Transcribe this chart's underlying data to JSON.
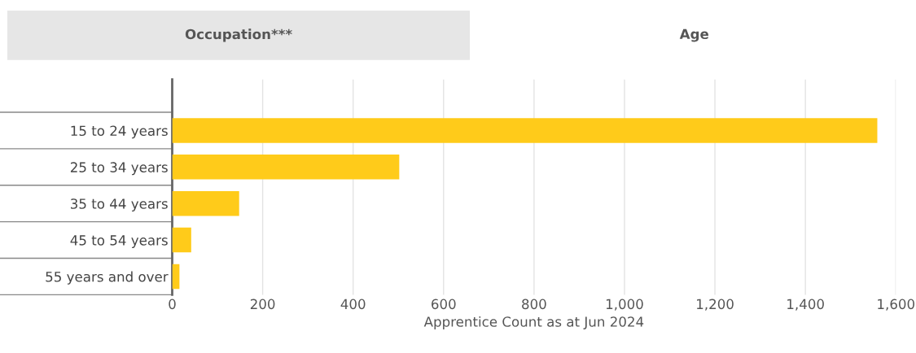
{
  "chart_data": {
    "type": "bar",
    "orientation": "horizontal",
    "categories": [
      "15 to 24 years",
      "25 to 34 years",
      "35 to 44 years",
      "45 to 54 years",
      "55 years and over"
    ],
    "values": [
      1559,
      502,
      148,
      42,
      16
    ],
    "color": "#ffcb1a",
    "xlim": [
      0,
      1600
    ],
    "xticks": [
      0,
      200,
      400,
      600,
      800,
      {
        "value": 1000,
        "label": "1,000"
      },
      {
        "value": 1200,
        "label": "1,200"
      },
      {
        "value": 1400,
        "label": "1,400"
      },
      {
        "value": 1600,
        "label": "1,600"
      }
    ],
    "xlabel": "Apprentice Count as at Jun 2024",
    "grid": "x",
    "annotations": [
      "Occupation***",
      "Age"
    ]
  }
}
